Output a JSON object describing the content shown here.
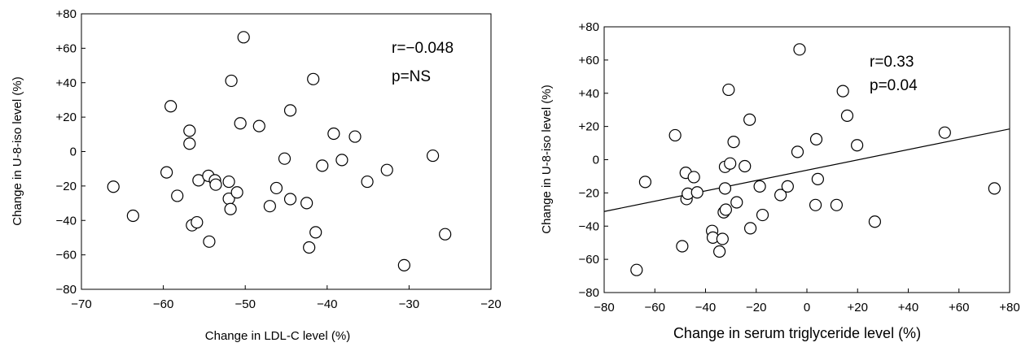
{
  "chart_data": [
    {
      "type": "scatter",
      "title": "",
      "xlabel": "Change in LDL-C level (%)",
      "ylabel": "Change in U-8-iso level (%)",
      "xlim": [
        -70,
        -20
      ],
      "ylim": [
        -80,
        80
      ],
      "xticks": [
        "−70",
        "−60",
        "−50",
        "−40",
        "−30",
        "−20"
      ],
      "yticks": [
        "+80",
        "+60",
        "+40",
        "+20",
        "0",
        "−20",
        "−40",
        "−60",
        "−80"
      ],
      "grid": false,
      "annotations": [
        "r=−0.048",
        "p=NS"
      ],
      "points": [
        {
          "x": -66.1,
          "y": -20.4
        },
        {
          "x": -63.7,
          "y": -37.3
        },
        {
          "x": -59.6,
          "y": -12.1
        },
        {
          "x": -59.1,
          "y": 26.3
        },
        {
          "x": -58.3,
          "y": -25.7
        },
        {
          "x": -56.8,
          "y": 12.1
        },
        {
          "x": -56.8,
          "y": 4.6
        },
        {
          "x": -56.5,
          "y": -42.8
        },
        {
          "x": -55.9,
          "y": -41.1
        },
        {
          "x": -55.7,
          "y": -16.7
        },
        {
          "x": -54.5,
          "y": -14.1
        },
        {
          "x": -54.4,
          "y": -52.3
        },
        {
          "x": -53.7,
          "y": -16.7
        },
        {
          "x": -53.6,
          "y": -19.2
        },
        {
          "x": -52.0,
          "y": -17.5
        },
        {
          "x": -52.0,
          "y": -27.4
        },
        {
          "x": -51.8,
          "y": -33.4
        },
        {
          "x": -51.7,
          "y": 41.1
        },
        {
          "x": -51.0,
          "y": -23.7
        },
        {
          "x": -50.6,
          "y": 16.4
        },
        {
          "x": -50.2,
          "y": 66.4
        },
        {
          "x": -48.3,
          "y": 14.8
        },
        {
          "x": -47.0,
          "y": -31.7
        },
        {
          "x": -46.2,
          "y": -21.2
        },
        {
          "x": -45.2,
          "y": -4.1
        },
        {
          "x": -44.5,
          "y": 23.9
        },
        {
          "x": -44.5,
          "y": -27.6
        },
        {
          "x": -42.5,
          "y": -29.9
        },
        {
          "x": -42.2,
          "y": -55.7
        },
        {
          "x": -41.7,
          "y": 42.1
        },
        {
          "x": -41.4,
          "y": -46.9
        },
        {
          "x": -40.6,
          "y": -8.2
        },
        {
          "x": -39.2,
          "y": 10.4
        },
        {
          "x": -38.2,
          "y": -4.9
        },
        {
          "x": -36.6,
          "y": 8.7
        },
        {
          "x": -35.1,
          "y": -17.5
        },
        {
          "x": -32.7,
          "y": -10.7
        },
        {
          "x": -30.6,
          "y": -66.0
        },
        {
          "x": -27.1,
          "y": -2.4
        },
        {
          "x": -25.6,
          "y": -48.0
        }
      ]
    },
    {
      "type": "scatter",
      "title": "",
      "xlabel": "Change in serum triglyceride level (%)",
      "ylabel": "Change in U-8-iso level (%)",
      "xlim": [
        -80,
        80
      ],
      "ylim": [
        -80,
        80
      ],
      "xticks": [
        "−80",
        "−60",
        "−40",
        "−20",
        "0",
        "+20",
        "+40",
        "+60",
        "+80"
      ],
      "yticks": [
        "+80",
        "+60",
        "+40",
        "+20",
        "0",
        "−20",
        "−40",
        "−60",
        "−80"
      ],
      "grid": false,
      "annotations": [
        "r=0.33",
        "p=0.04"
      ],
      "regression_line": {
        "x": [
          -80,
          80
        ],
        "y": [
          -31.2,
          18.5
        ]
      },
      "points": [
        {
          "x": -67.2,
          "y": -66.4
        },
        {
          "x": -63.8,
          "y": -13.4
        },
        {
          "x": -52.0,
          "y": 14.7
        },
        {
          "x": -49.2,
          "y": -52.1
        },
        {
          "x": -47.8,
          "y": -7.9
        },
        {
          "x": -47.5,
          "y": -23.7
        },
        {
          "x": -47.0,
          "y": -20.5
        },
        {
          "x": -44.6,
          "y": -10.5
        },
        {
          "x": -43.3,
          "y": -19.7
        },
        {
          "x": -37.4,
          "y": -42.9
        },
        {
          "x": -37.1,
          "y": -46.9
        },
        {
          "x": -34.5,
          "y": -55.3
        },
        {
          "x": -33.3,
          "y": -47.7
        },
        {
          "x": -32.8,
          "y": -31.7
        },
        {
          "x": -32.3,
          "y": -4.3
        },
        {
          "x": -32.3,
          "y": -17.3
        },
        {
          "x": -32.0,
          "y": -30.1
        },
        {
          "x": -30.9,
          "y": 42.1
        },
        {
          "x": -30.3,
          "y": -2.3
        },
        {
          "x": -28.9,
          "y": 10.7
        },
        {
          "x": -27.7,
          "y": -25.7
        },
        {
          "x": -24.5,
          "y": -3.9
        },
        {
          "x": -22.6,
          "y": 24.1
        },
        {
          "x": -22.3,
          "y": -41.3
        },
        {
          "x": -18.6,
          "y": -16.1
        },
        {
          "x": -17.5,
          "y": -33.3
        },
        {
          "x": -10.4,
          "y": -21.3
        },
        {
          "x": -7.6,
          "y": -16.1
        },
        {
          "x": -3.7,
          "y": 4.7
        },
        {
          "x": -2.9,
          "y": 66.4
        },
        {
          "x": 3.4,
          "y": -27.3
        },
        {
          "x": 3.7,
          "y": 12.3
        },
        {
          "x": 4.3,
          "y": -11.7
        },
        {
          "x": 11.7,
          "y": -27.3
        },
        {
          "x": 14.2,
          "y": 41.3
        },
        {
          "x": 15.9,
          "y": 26.5
        },
        {
          "x": 19.8,
          "y": 8.7
        },
        {
          "x": 26.8,
          "y": -37.3
        },
        {
          "x": 54.4,
          "y": 16.3
        },
        {
          "x": 74.0,
          "y": -17.3
        }
      ]
    }
  ]
}
